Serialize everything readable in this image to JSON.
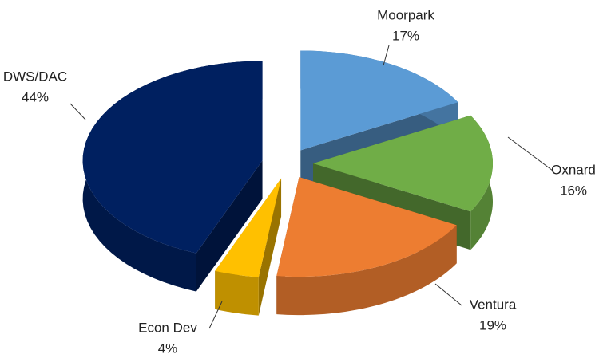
{
  "chart_data": {
    "type": "pie",
    "categories": [
      "Moorpark",
      "Oxnard",
      "Ventura",
      "Econ Dev",
      "DWS/DAC"
    ],
    "values": [
      17,
      16,
      19,
      4,
      44
    ],
    "value_labels": [
      "17%",
      "16%",
      "19%",
      "4%",
      "44%"
    ],
    "colors": [
      "#5b9bd5",
      "#70ad47",
      "#ed7d31",
      "#ffc000",
      "#002060"
    ]
  }
}
